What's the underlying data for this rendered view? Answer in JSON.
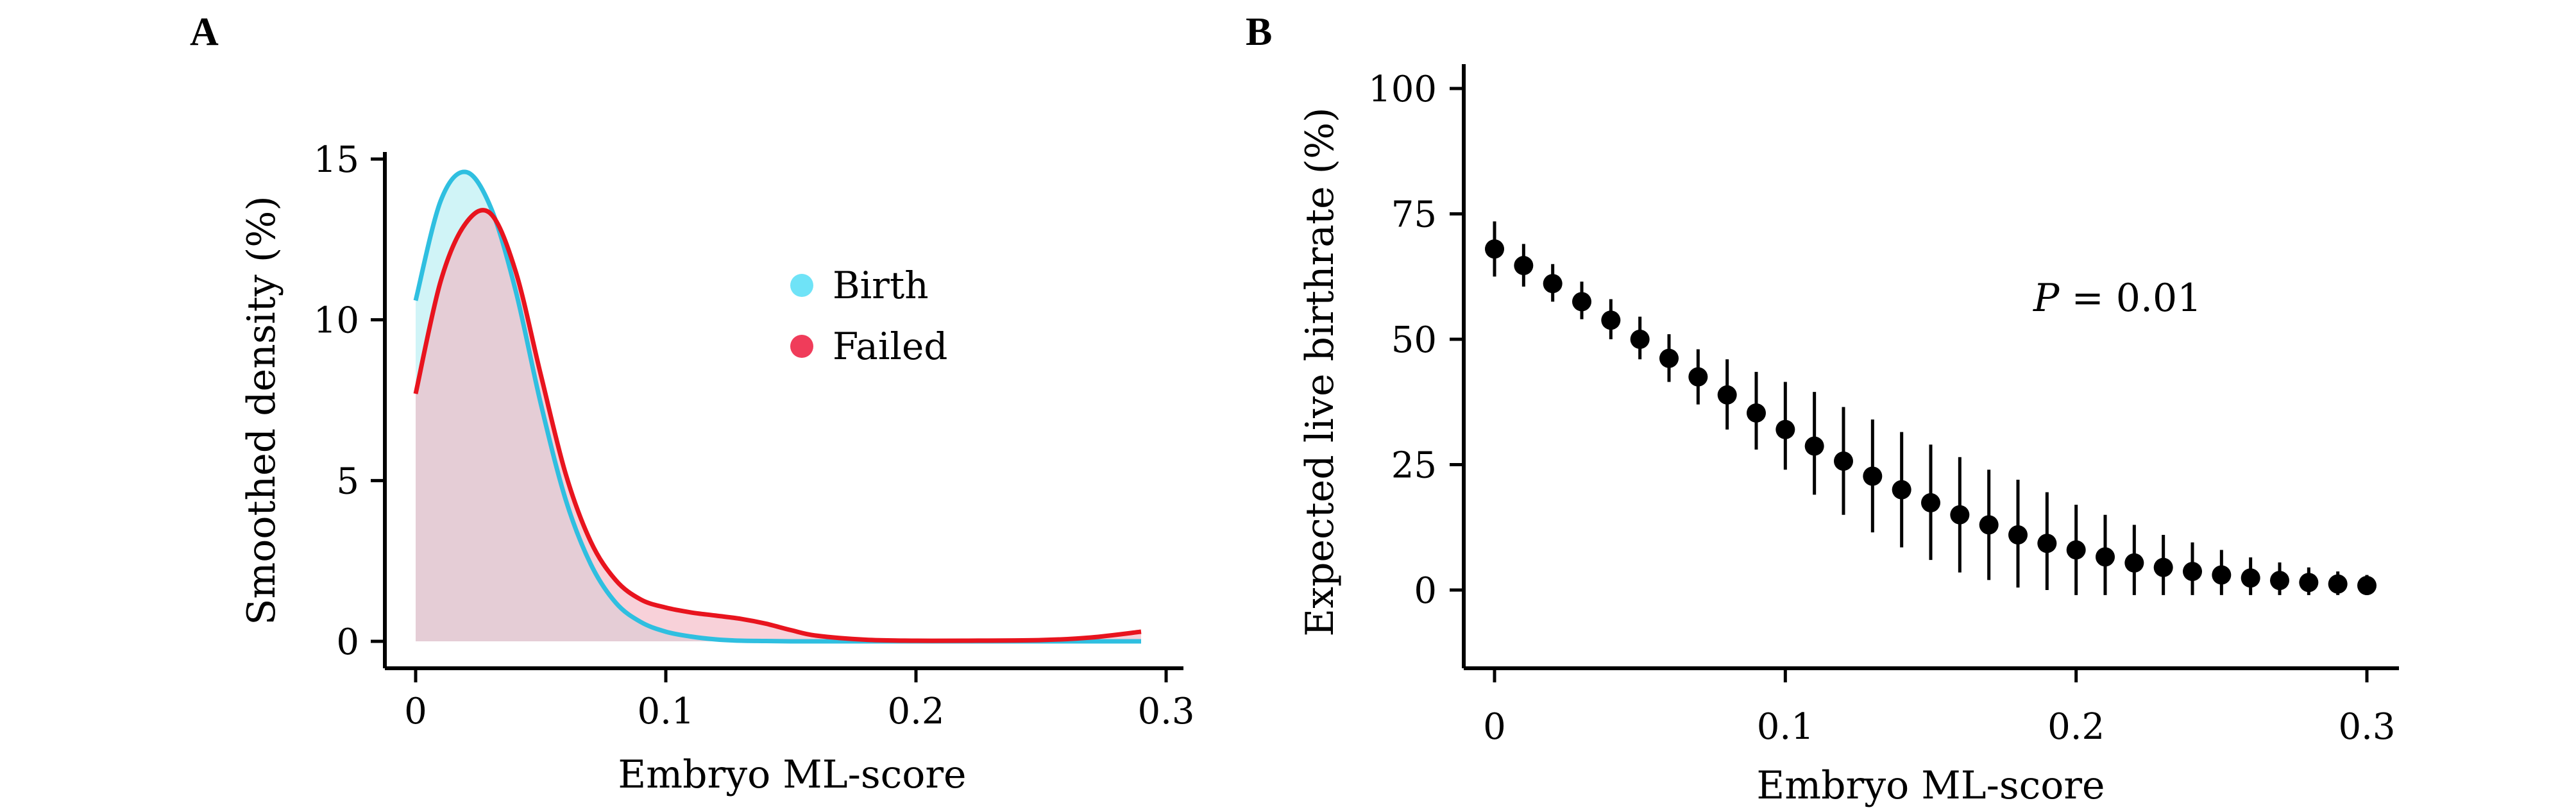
{
  "chart_data": [
    {
      "panel": "A",
      "type": "area",
      "title": "",
      "xlabel": "Embryo ML-score",
      "ylabel": "Smoothed density (%)",
      "xlim": [
        0,
        0.3
      ],
      "ylim": [
        0,
        15
      ],
      "xticks": [
        0,
        0.1,
        0.2,
        0.3
      ],
      "xtick_labels": [
        "0",
        "0.1",
        "0.2",
        "0.3"
      ],
      "yticks": [
        0,
        5,
        10,
        15
      ],
      "ytick_labels": [
        "0",
        "5",
        "10",
        "15"
      ],
      "legend_position": "center-right",
      "series": [
        {
          "name": "Birth",
          "line_color": "#2fbfe0",
          "fill_color": "#c8f2f6",
          "marker_color": "#6fe3f7",
          "x": [
            0,
            0.01,
            0.02,
            0.03,
            0.04,
            0.05,
            0.06,
            0.07,
            0.08,
            0.09,
            0.1,
            0.11,
            0.12,
            0.13,
            0.14,
            0.15,
            0.16,
            0.18,
            0.2,
            0.22,
            0.25,
            0.29
          ],
          "values": [
            10.6,
            13.7,
            14.6,
            13.5,
            10.9,
            7.4,
            4.4,
            2.4,
            1.2,
            0.6,
            0.3,
            0.15,
            0.06,
            0.02,
            0.01,
            0,
            0,
            0,
            0,
            0,
            0,
            0
          ]
        },
        {
          "name": "Failed",
          "line_color": "#e8141e",
          "fill_color": "#f4b3bf",
          "marker_color": "#f03c5a",
          "x": [
            0,
            0.01,
            0.02,
            0.03,
            0.04,
            0.05,
            0.06,
            0.07,
            0.08,
            0.09,
            0.1,
            0.11,
            0.12,
            0.13,
            0.14,
            0.15,
            0.16,
            0.18,
            0.2,
            0.22,
            0.25,
            0.27,
            0.29
          ],
          "values": [
            7.7,
            11.2,
            13.0,
            13.3,
            11.5,
            8.3,
            5.2,
            3.1,
            1.9,
            1.3,
            1.05,
            0.9,
            0.8,
            0.7,
            0.55,
            0.35,
            0.18,
            0.05,
            0.02,
            0.02,
            0.04,
            0.12,
            0.3
          ]
        }
      ]
    },
    {
      "panel": "B",
      "type": "scatter",
      "title": "",
      "xlabel": "Embryo ML-score",
      "ylabel": "Expected live birthrate (%)",
      "xlim": [
        -0.015,
        0.315
      ],
      "ylim": [
        -15,
        100
      ],
      "xticks": [
        0,
        0.1,
        0.2,
        0.3
      ],
      "xtick_labels": [
        "0",
        "0.1",
        "0.2",
        "0.3"
      ],
      "yticks": [
        0,
        25,
        50,
        75,
        100
      ],
      "ytick_labels": [
        "0",
        "25",
        "50",
        "75",
        "100"
      ],
      "annotation": {
        "p_label": "P",
        "text": " = 0.01"
      },
      "points": {
        "x": [
          0,
          0.01,
          0.02,
          0.03,
          0.04,
          0.05,
          0.06,
          0.07,
          0.08,
          0.09,
          0.1,
          0.11,
          0.12,
          0.13,
          0.14,
          0.15,
          0.16,
          0.17,
          0.18,
          0.19,
          0.2,
          0.21,
          0.22,
          0.23,
          0.24,
          0.25,
          0.26,
          0.27,
          0.28,
          0.29,
          0.3
        ],
        "y": [
          68,
          64.7,
          61.1,
          57.5,
          53.8,
          50,
          46.2,
          42.5,
          38.9,
          35.3,
          32,
          28.7,
          25.7,
          22.7,
          20,
          17.4,
          15,
          13,
          11,
          9.3,
          8,
          6.6,
          5.4,
          4.5,
          3.7,
          3,
          2.4,
          1.9,
          1.5,
          1.2,
          0.9
        ],
        "lower": [
          62.5,
          60.5,
          57.5,
          54,
          50,
          46,
          41.5,
          37,
          32,
          28,
          24,
          19,
          15,
          11.5,
          8.5,
          6,
          3.5,
          2,
          0.5,
          0,
          -1,
          -1,
          -1,
          -1,
          -1,
          -1,
          -1,
          -1,
          -1,
          -1,
          -1
        ],
        "upper": [
          73.5,
          69,
          65,
          61.5,
          58,
          54.5,
          51,
          48,
          46,
          43.5,
          41.5,
          39.5,
          36.5,
          34,
          31.5,
          29,
          26.5,
          24,
          22,
          19.5,
          17,
          15,
          13,
          11,
          9.5,
          8,
          6.5,
          5.5,
          4.5,
          3.7,
          3
        ]
      },
      "marker_color": "#000000"
    }
  ],
  "panels": {
    "a": {
      "letter": "A"
    },
    "b": {
      "letter": "B"
    }
  }
}
